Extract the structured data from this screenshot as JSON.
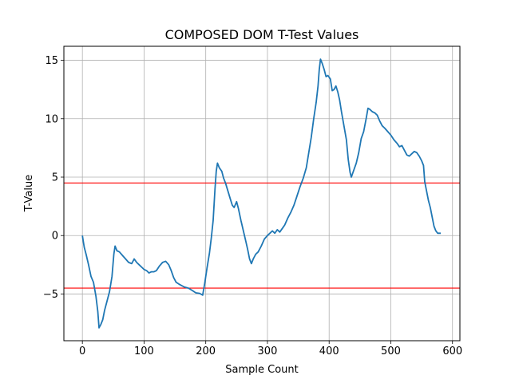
{
  "chart_data": {
    "type": "line",
    "title": "COMPOSED DOM T-Test Values",
    "xlabel": "Sample Count",
    "ylabel": "T-Value",
    "xlim": [
      -30,
      612
    ],
    "ylim": [
      -9.0,
      16.2
    ],
    "xticks": [
      0,
      100,
      200,
      300,
      400,
      500,
      600
    ],
    "yticks": [
      -5,
      0,
      5,
      10,
      15
    ],
    "xtick_labels": [
      "0",
      "100",
      "200",
      "300",
      "400",
      "500",
      "600"
    ],
    "ytick_labels": [
      "−5",
      "0",
      "5",
      "10",
      "15"
    ],
    "grid": true,
    "series": [
      {
        "color": "#1f77b4",
        "points": [
          [
            0,
            0.0
          ],
          [
            3,
            -1.0
          ],
          [
            6,
            -1.6
          ],
          [
            10,
            -2.5
          ],
          [
            14,
            -3.5
          ],
          [
            18,
            -4.0
          ],
          [
            22,
            -5.2
          ],
          [
            25,
            -6.5
          ],
          [
            27,
            -7.9
          ],
          [
            30,
            -7.6
          ],
          [
            33,
            -7.2
          ],
          [
            36,
            -6.4
          ],
          [
            40,
            -5.6
          ],
          [
            44,
            -4.8
          ],
          [
            48,
            -3.5
          ],
          [
            51,
            -1.6
          ],
          [
            53,
            -0.9
          ],
          [
            56,
            -1.3
          ],
          [
            60,
            -1.4
          ],
          [
            65,
            -1.7
          ],
          [
            70,
            -2.0
          ],
          [
            75,
            -2.3
          ],
          [
            80,
            -2.4
          ],
          [
            84,
            -2.0
          ],
          [
            88,
            -2.3
          ],
          [
            92,
            -2.5
          ],
          [
            96,
            -2.7
          ],
          [
            100,
            -2.9
          ],
          [
            104,
            -3.0
          ],
          [
            108,
            -3.2
          ],
          [
            112,
            -3.1
          ],
          [
            116,
            -3.1
          ],
          [
            120,
            -3.0
          ],
          [
            125,
            -2.6
          ],
          [
            130,
            -2.3
          ],
          [
            135,
            -2.2
          ],
          [
            140,
            -2.5
          ],
          [
            144,
            -3.0
          ],
          [
            148,
            -3.6
          ],
          [
            152,
            -4.0
          ],
          [
            158,
            -4.2
          ],
          [
            165,
            -4.4
          ],
          [
            172,
            -4.5
          ],
          [
            178,
            -4.7
          ],
          [
            184,
            -4.9
          ],
          [
            190,
            -4.95
          ],
          [
            195,
            -5.1
          ],
          [
            198,
            -4.2
          ],
          [
            202,
            -2.8
          ],
          [
            206,
            -1.5
          ],
          [
            209,
            -0.2
          ],
          [
            212,
            1.3
          ],
          [
            215,
            4.0
          ],
          [
            217,
            5.5
          ],
          [
            219,
            6.2
          ],
          [
            222,
            5.8
          ],
          [
            226,
            5.5
          ],
          [
            229,
            4.9
          ],
          [
            232,
            4.5
          ],
          [
            236,
            3.8
          ],
          [
            240,
            3.1
          ],
          [
            243,
            2.6
          ],
          [
            246,
            2.4
          ],
          [
            250,
            2.9
          ],
          [
            253,
            2.3
          ],
          [
            257,
            1.3
          ],
          [
            261,
            0.4
          ],
          [
            265,
            -0.5
          ],
          [
            268,
            -1.2
          ],
          [
            271,
            -2.0
          ],
          [
            274,
            -2.4
          ],
          [
            277,
            -2.0
          ],
          [
            281,
            -1.6
          ],
          [
            285,
            -1.4
          ],
          [
            290,
            -0.9
          ],
          [
            295,
            -0.3
          ],
          [
            300,
            0.0
          ],
          [
            304,
            0.2
          ],
          [
            308,
            0.4
          ],
          [
            312,
            0.2
          ],
          [
            316,
            0.5
          ],
          [
            320,
            0.3
          ],
          [
            324,
            0.6
          ],
          [
            328,
            0.9
          ],
          [
            333,
            1.5
          ],
          [
            338,
            2.0
          ],
          [
            343,
            2.6
          ],
          [
            348,
            3.4
          ],
          [
            353,
            4.2
          ],
          [
            358,
            4.9
          ],
          [
            363,
            5.8
          ],
          [
            367,
            7.1
          ],
          [
            371,
            8.4
          ],
          [
            375,
            10.0
          ],
          [
            379,
            11.4
          ],
          [
            382,
            12.8
          ],
          [
            384,
            14.2
          ],
          [
            386,
            15.1
          ],
          [
            389,
            14.7
          ],
          [
            392,
            14.2
          ],
          [
            395,
            13.6
          ],
          [
            398,
            13.7
          ],
          [
            402,
            13.4
          ],
          [
            405,
            12.4
          ],
          [
            408,
            12.5
          ],
          [
            411,
            12.8
          ],
          [
            414,
            12.3
          ],
          [
            417,
            11.6
          ],
          [
            420,
            10.6
          ],
          [
            424,
            9.4
          ],
          [
            428,
            8.2
          ],
          [
            431,
            6.5
          ],
          [
            434,
            5.4
          ],
          [
            436,
            5.0
          ],
          [
            440,
            5.6
          ],
          [
            444,
            6.2
          ],
          [
            448,
            7.1
          ],
          [
            452,
            8.3
          ],
          [
            456,
            8.9
          ],
          [
            460,
            10.0
          ],
          [
            463,
            10.9
          ],
          [
            466,
            10.8
          ],
          [
            470,
            10.6
          ],
          [
            474,
            10.5
          ],
          [
            478,
            10.3
          ],
          [
            482,
            9.8
          ],
          [
            486,
            9.4
          ],
          [
            490,
            9.2
          ],
          [
            495,
            8.9
          ],
          [
            500,
            8.6
          ],
          [
            505,
            8.2
          ],
          [
            510,
            7.9
          ],
          [
            514,
            7.6
          ],
          [
            518,
            7.7
          ],
          [
            522,
            7.3
          ],
          [
            526,
            6.9
          ],
          [
            530,
            6.8
          ],
          [
            534,
            7.0
          ],
          [
            538,
            7.2
          ],
          [
            542,
            7.1
          ],
          [
            546,
            6.8
          ],
          [
            550,
            6.4
          ],
          [
            553,
            6.0
          ],
          [
            555,
            4.6
          ],
          [
            558,
            3.8
          ],
          [
            561,
            3.0
          ],
          [
            564,
            2.4
          ],
          [
            567,
            1.6
          ],
          [
            570,
            0.8
          ],
          [
            573,
            0.4
          ],
          [
            576,
            0.2
          ],
          [
            581,
            0.2
          ]
        ]
      }
    ],
    "threshold_lines": [
      {
        "y": 4.5,
        "color": "#ff0000"
      },
      {
        "y": -4.5,
        "color": "#ff0000"
      }
    ]
  }
}
